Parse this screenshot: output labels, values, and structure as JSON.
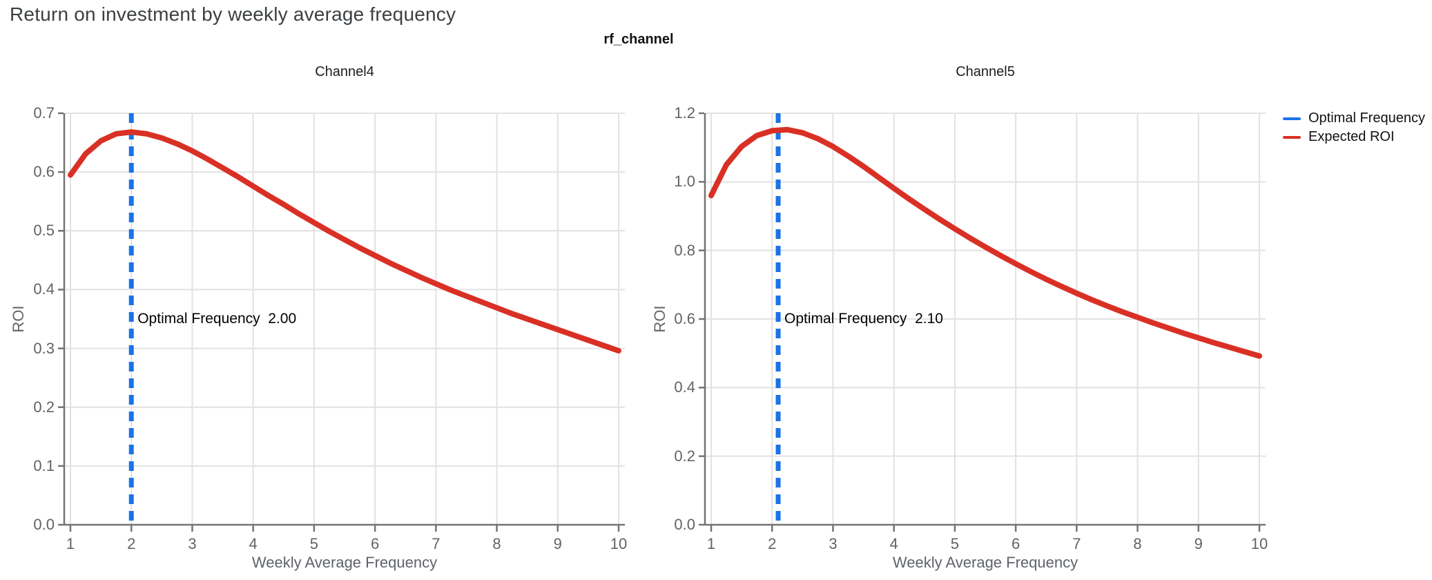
{
  "page": {
    "title": "Return on investment by weekly average frequency"
  },
  "figure": {
    "title": "rf_channel"
  },
  "legend": {
    "items": [
      {
        "label": "Optimal Frequency",
        "color": "#1a73e8"
      },
      {
        "label": "Expected ROI",
        "color": "#d93025"
      }
    ]
  },
  "colors": {
    "optimal_frequency_line": "#1a73e8",
    "expected_roi_line": "#d93025",
    "grid": "#e2e2e2",
    "axis": "#737373",
    "tick_text": "#5f6368",
    "title_text": "#3c4043",
    "annotation_text": "#000000"
  },
  "chart_data": [
    {
      "type": "line",
      "title": "Channel4",
      "xlabel": "Weekly Average Frequency",
      "ylabel": "ROI",
      "xlim": [
        0.9,
        10.1
      ],
      "ylim": [
        0,
        0.7
      ],
      "xticks": [
        1,
        2,
        3,
        4,
        5,
        6,
        7,
        8,
        9,
        10
      ],
      "xtick_labels": [
        "1",
        "2",
        "3",
        "4",
        "5",
        "6",
        "7",
        "8",
        "9",
        "10"
      ],
      "yticks": [
        0,
        0.1,
        0.2,
        0.3,
        0.4,
        0.5,
        0.6,
        0.7
      ],
      "ytick_labels": [
        "0.0",
        "0.1",
        "0.2",
        "0.3",
        "0.4",
        "0.5",
        "0.6",
        "0.7"
      ],
      "grid": true,
      "optimal_frequency": 2.0,
      "annotation": "Optimal Frequency  2.00",
      "series": [
        {
          "name": "Expected ROI",
          "x": [
            1,
            1.25,
            1.5,
            1.75,
            2,
            2.25,
            2.5,
            2.75,
            3,
            3.25,
            3.5,
            3.75,
            4,
            4.25,
            4.5,
            4.75,
            5,
            5.25,
            5.5,
            5.75,
            6,
            6.25,
            6.5,
            6.75,
            7,
            7.25,
            7.5,
            7.75,
            8,
            8.25,
            8.5,
            8.75,
            9,
            9.25,
            9.5,
            9.75,
            10
          ],
          "y": [
            0.595,
            0.631,
            0.653,
            0.665,
            0.668,
            0.665,
            0.658,
            0.648,
            0.636,
            0.622,
            0.607,
            0.592,
            0.576,
            0.56,
            0.545,
            0.529,
            0.514,
            0.499,
            0.485,
            0.471,
            0.458,
            0.445,
            0.433,
            0.421,
            0.41,
            0.399,
            0.389,
            0.379,
            0.369,
            0.359,
            0.35,
            0.341,
            0.332,
            0.323,
            0.314,
            0.305,
            0.296
          ]
        },
        {
          "name": "Optimal Frequency",
          "type": "vline",
          "x": 2.0
        }
      ]
    },
    {
      "type": "line",
      "title": "Channel5",
      "xlabel": "Weekly Average Frequency",
      "ylabel": "ROI",
      "xlim": [
        0.9,
        10.1
      ],
      "ylim": [
        0,
        1.2
      ],
      "xticks": [
        1,
        2,
        3,
        4,
        5,
        6,
        7,
        8,
        9,
        10
      ],
      "xtick_labels": [
        "1",
        "2",
        "3",
        "4",
        "5",
        "6",
        "7",
        "8",
        "9",
        "10"
      ],
      "yticks": [
        0,
        0.2,
        0.4,
        0.6,
        0.8,
        1.0,
        1.2
      ],
      "ytick_labels": [
        "0.0",
        "0.2",
        "0.4",
        "0.6",
        "0.8",
        "1.0",
        "1.2"
      ],
      "grid": true,
      "optimal_frequency": 2.1,
      "annotation": "Optimal Frequency  2.10",
      "series": [
        {
          "name": "Expected ROI",
          "x": [
            1,
            1.25,
            1.5,
            1.75,
            2,
            2.25,
            2.5,
            2.75,
            3,
            3.25,
            3.5,
            3.75,
            4,
            4.25,
            4.5,
            4.75,
            5,
            5.25,
            5.5,
            5.75,
            6,
            6.25,
            6.5,
            6.75,
            7,
            7.25,
            7.5,
            7.75,
            8,
            8.25,
            8.5,
            8.75,
            9,
            9.25,
            9.5,
            9.75,
            10
          ],
          "y": [
            0.96,
            1.05,
            1.103,
            1.135,
            1.149,
            1.152,
            1.143,
            1.126,
            1.103,
            1.075,
            1.045,
            1.013,
            0.981,
            0.95,
            0.92,
            0.891,
            0.863,
            0.836,
            0.81,
            0.785,
            0.761,
            0.738,
            0.716,
            0.695,
            0.675,
            0.656,
            0.638,
            0.621,
            0.605,
            0.589,
            0.574,
            0.559,
            0.545,
            0.531,
            0.518,
            0.505,
            0.492
          ]
        },
        {
          "name": "Optimal Frequency",
          "type": "vline",
          "x": 2.1
        }
      ]
    }
  ]
}
